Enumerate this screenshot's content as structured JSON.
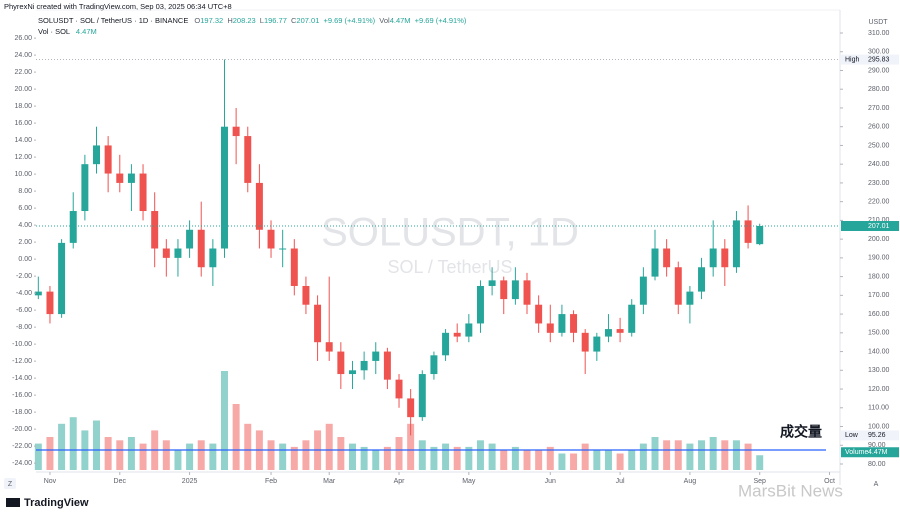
{
  "header": {
    "author_line": "PhyrexNi created with TradingView.com, Sep 03, 2025 06:34 UTC+8",
    "symbol_line": "SOLUSDT · SOL / TetherUS · 1D · BINANCE",
    "o": "O",
    "h": "H",
    "l": "L",
    "c": "C",
    "change": "+9.69 (+4.91%)",
    "vol_prefix": "Vol",
    "vol_change": "+9.69 (+4.91%)",
    "vol_title": "Vol · SOL"
  },
  "chart_data": {
    "type": "candlestick",
    "watermark_title": "SOLUSDT, 1D",
    "watermark_subtitle": "SOL / TetherUS",
    "currency": "USDT",
    "high_label": "High",
    "low_label": "Low",
    "volume_axis_label": "Volume",
    "annotation": "成交量",
    "annotation_color": "#9c27b0",
    "up_color": "#26a69a",
    "down_color": "#ef5350",
    "open": [
      170,
      172,
      160,
      198,
      215,
      240,
      250,
      235,
      230,
      235,
      215,
      195,
      190,
      195,
      205,
      185,
      195,
      260,
      255,
      230,
      205,
      195,
      195,
      175,
      165,
      145,
      140,
      128,
      130,
      135,
      140,
      125,
      115,
      105,
      128,
      138,
      150,
      148,
      155,
      175,
      178,
      168,
      178,
      165,
      155,
      150,
      160,
      150,
      140,
      148,
      152,
      150,
      165,
      180,
      195,
      185,
      165,
      172,
      185,
      195,
      185,
      210,
      197.32
    ],
    "high": [
      180,
      175,
      200,
      225,
      245,
      260,
      255,
      245,
      240,
      240,
      225,
      200,
      200,
      210,
      220,
      200,
      295.83,
      270,
      260,
      240,
      210,
      205,
      200,
      180,
      170,
      180,
      145,
      135,
      140,
      145,
      142,
      128,
      120,
      130,
      140,
      152,
      155,
      160,
      178,
      185,
      180,
      185,
      182,
      170,
      165,
      165,
      162,
      152,
      150,
      160,
      158,
      168,
      185,
      205,
      200,
      188,
      175,
      190,
      210,
      200,
      215,
      218,
      208.23
    ],
    "low": [
      168,
      155,
      158,
      195,
      210,
      235,
      225,
      225,
      215,
      210,
      185,
      180,
      180,
      190,
      180,
      175,
      190,
      240,
      225,
      195,
      190,
      185,
      170,
      160,
      135,
      135,
      120,
      120,
      125,
      128,
      120,
      110,
      95.26,
      103,
      125,
      135,
      145,
      145,
      150,
      170,
      160,
      165,
      160,
      150,
      145,
      148,
      145,
      128,
      135,
      145,
      145,
      148,
      160,
      178,
      180,
      160,
      155,
      168,
      180,
      175,
      182,
      195,
      196.77
    ],
    "close": [
      172,
      160,
      198,
      215,
      240,
      250,
      235,
      230,
      235,
      215,
      195,
      190,
      195,
      205,
      185,
      195,
      260,
      255,
      230,
      205,
      195,
      195,
      175,
      165,
      145,
      140,
      128,
      130,
      135,
      140,
      125,
      115,
      105,
      128,
      138,
      150,
      148,
      155,
      175,
      178,
      168,
      178,
      165,
      155,
      150,
      160,
      150,
      140,
      148,
      152,
      150,
      165,
      180,
      195,
      185,
      165,
      172,
      185,
      195,
      185,
      210,
      198,
      207.01
    ],
    "volume": [
      8,
      10,
      14,
      16,
      12,
      15,
      10,
      9,
      10,
      8,
      12,
      9,
      6,
      8,
      9,
      8,
      30,
      20,
      14,
      12,
      9,
      8,
      7,
      9,
      12,
      14,
      10,
      8,
      7,
      6,
      7,
      10,
      14,
      9,
      7,
      8,
      7,
      7,
      9,
      8,
      6,
      7,
      6,
      6,
      7,
      5,
      5,
      8,
      6,
      6,
      5,
      6,
      8,
      10,
      9,
      9,
      8,
      9,
      10,
      9,
      9,
      8,
      4.47
    ],
    "volume_label": "4.47M",
    "volume_lim": [
      0,
      40
    ],
    "xlim": [
      -0.2,
      68.9
    ],
    "xticks": [
      {
        "value": 1,
        "label": "Nov"
      },
      {
        "value": 7,
        "label": "Dec"
      },
      {
        "value": 13,
        "label": "2025"
      },
      {
        "value": 20,
        "label": "Feb"
      },
      {
        "value": 25,
        "label": "Mar"
      },
      {
        "value": 31,
        "label": "Apr"
      },
      {
        "value": 37,
        "label": "May"
      },
      {
        "value": 44,
        "label": "Jun"
      },
      {
        "value": 50,
        "label": "Jul"
      },
      {
        "value": 56,
        "label": "Aug"
      },
      {
        "value": 62,
        "label": "Sep"
      },
      {
        "value": 68,
        "label": "Oct"
      }
    ],
    "ylim": [
      80,
      310
    ],
    "yticks": [
      {
        "value": 80,
        "label": "80.00"
      },
      {
        "value": 90,
        "label": "90.00"
      },
      {
        "value": 100,
        "label": "100.00"
      },
      {
        "value": 110,
        "label": "110.00"
      },
      {
        "value": 120,
        "label": "120.00"
      },
      {
        "value": 130,
        "label": "130.00"
      },
      {
        "value": 140,
        "label": "140.00"
      },
      {
        "value": 150,
        "label": "150.00"
      },
      {
        "value": 160,
        "label": "160.00"
      },
      {
        "value": 170,
        "label": "170.00"
      },
      {
        "value": 180,
        "label": "180.00"
      },
      {
        "value": 190,
        "label": "190.00"
      },
      {
        "value": 200,
        "label": "200.00"
      },
      {
        "value": 210,
        "label": "210.00"
      },
      {
        "value": 220,
        "label": "220.00"
      },
      {
        "value": 230,
        "label": "230.00"
      },
      {
        "value": 240,
        "label": "240.00"
      },
      {
        "value": 250,
        "label": "250.00"
      },
      {
        "value": 260,
        "label": "260.00"
      },
      {
        "value": 270,
        "label": "270.00"
      },
      {
        "value": 280,
        "label": "280.00"
      },
      {
        "value": 290,
        "label": "290.00"
      },
      {
        "value": 300,
        "label": "300.00"
      },
      {
        "value": 310,
        "label": "310.00"
      }
    ],
    "y2lim": [
      -24.1,
      26.6
    ],
    "y2ticks": [
      {
        "value": -24,
        "label": "-24.00"
      },
      {
        "value": -22,
        "label": "-22.00"
      },
      {
        "value": -20,
        "label": "-20.00"
      },
      {
        "value": -18,
        "label": "-18.00"
      },
      {
        "value": -16,
        "label": "-16.00"
      },
      {
        "value": -14,
        "label": "-14.00"
      },
      {
        "value": -12,
        "label": "-12.00"
      },
      {
        "value": -10,
        "label": "-10.00"
      },
      {
        "value": -8,
        "label": "-8.00"
      },
      {
        "value": -6,
        "label": "-6.00"
      },
      {
        "value": -4,
        "label": "-4.00"
      },
      {
        "value": -2,
        "label": "-2.00"
      },
      {
        "value": 0,
        "label": "0.00"
      },
      {
        "value": 2,
        "label": "2.00"
      },
      {
        "value": 4,
        "label": "4.00"
      },
      {
        "value": 6,
        "label": "6.00"
      },
      {
        "value": 8,
        "label": "8.00"
      },
      {
        "value": 10,
        "label": "10.00"
      },
      {
        "value": 12,
        "label": "12.00"
      },
      {
        "value": 14,
        "label": "14.00"
      },
      {
        "value": 16,
        "label": "16.00"
      },
      {
        "value": 18,
        "label": "18.00"
      },
      {
        "value": 20,
        "label": "20.00"
      },
      {
        "value": 22,
        "label": "22.00"
      },
      {
        "value": 24,
        "label": "24.00"
      },
      {
        "value": 26,
        "label": "26.00"
      }
    ],
    "grid": false
  },
  "footer": {
    "brand": "TradingView",
    "left_button": "Z",
    "right_button": "A",
    "watermark": "MarsBit News"
  }
}
